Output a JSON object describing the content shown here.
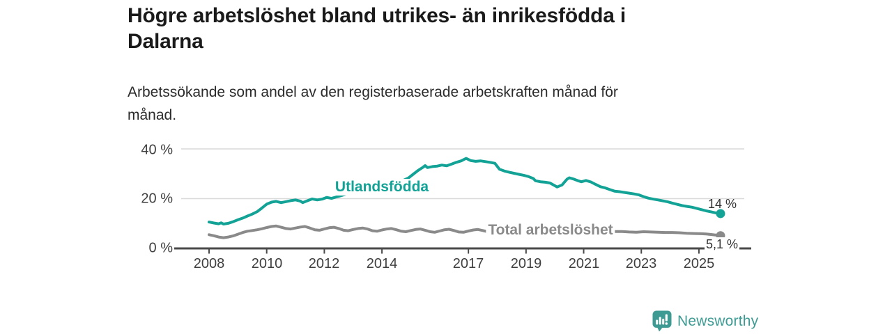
{
  "header": {
    "title": "Högre arbetslöshet bland utrikes- än inrikesfödda i\nDalarna",
    "subtitle": "Arbetssökande som andel av den registerbaserade arbetskraften månad för\nmånad."
  },
  "chart_data": {
    "type": "line",
    "title": "Högre arbetslöshet bland utrikes- än inrikesfödda i Dalarna",
    "subtitle": "Arbetssökande som andel av den registerbaserade arbetskraften månad för månad.",
    "unit": "%",
    "xlim": [
      2007.2,
      2026.8
    ],
    "ylim": [
      0,
      40
    ],
    "grid": "horizontal",
    "legend_position": "inline-labels",
    "x_ticks": [
      2008,
      2010,
      2012,
      2014,
      2017,
      2019,
      2021,
      2023,
      2025
    ],
    "y_ticks": [
      {
        "value": 0,
        "label": "0 %"
      },
      {
        "value": 20,
        "label": "20 %"
      },
      {
        "value": 40,
        "label": "40 %"
      }
    ],
    "colors": {
      "foreign_born": "#12a296",
      "total": "#8a8a8a",
      "axis": "#4a4a4a",
      "grid": "#d9d9d9"
    },
    "series": [
      {
        "name": "Utlandsfödda",
        "color": "#12a296",
        "end_value": 14,
        "end_label": "14 %",
        "points": [
          [
            2008.0,
            10.6
          ],
          [
            2008.17,
            10.2
          ],
          [
            2008.33,
            9.9
          ],
          [
            2008.42,
            10.3
          ],
          [
            2008.5,
            9.8
          ],
          [
            2008.67,
            10.1
          ],
          [
            2008.83,
            10.7
          ],
          [
            2009.0,
            11.5
          ],
          [
            2009.17,
            12.2
          ],
          [
            2009.33,
            13.0
          ],
          [
            2009.5,
            13.8
          ],
          [
            2009.67,
            14.8
          ],
          [
            2009.83,
            16.2
          ],
          [
            2010.0,
            17.8
          ],
          [
            2010.17,
            18.6
          ],
          [
            2010.33,
            18.9
          ],
          [
            2010.5,
            18.4
          ],
          [
            2010.67,
            18.8
          ],
          [
            2010.83,
            19.2
          ],
          [
            2011.0,
            19.5
          ],
          [
            2011.17,
            19.0
          ],
          [
            2011.25,
            18.4
          ],
          [
            2011.42,
            19.2
          ],
          [
            2011.58,
            19.9
          ],
          [
            2011.75,
            19.5
          ],
          [
            2011.92,
            19.8
          ],
          [
            2012.08,
            20.5
          ],
          [
            2012.25,
            20.1
          ],
          [
            2012.42,
            20.7
          ],
          [
            2012.58,
            21.2
          ],
          [
            2012.75,
            21.8
          ],
          [
            2012.92,
            22.4
          ],
          [
            2013.17,
            23.1
          ],
          [
            2013.42,
            23.7
          ],
          [
            2013.67,
            24.2
          ],
          [
            2013.92,
            24.8
          ],
          [
            2014.17,
            25.5
          ],
          [
            2014.42,
            26.2
          ],
          [
            2014.67,
            27.0
          ],
          [
            2014.92,
            28.3
          ],
          [
            2015.08,
            29.8
          ],
          [
            2015.25,
            31.3
          ],
          [
            2015.42,
            32.6
          ],
          [
            2015.5,
            33.3
          ],
          [
            2015.58,
            32.5
          ],
          [
            2015.75,
            32.9
          ],
          [
            2015.92,
            33.1
          ],
          [
            2016.08,
            33.5
          ],
          [
            2016.25,
            33.2
          ],
          [
            2016.42,
            33.9
          ],
          [
            2016.58,
            34.6
          ],
          [
            2016.75,
            35.2
          ],
          [
            2016.92,
            36.2
          ],
          [
            2017.08,
            35.3
          ],
          [
            2017.25,
            35.0
          ],
          [
            2017.42,
            35.2
          ],
          [
            2017.58,
            34.9
          ],
          [
            2017.75,
            34.6
          ],
          [
            2017.92,
            34.2
          ],
          [
            2018.0,
            33.0
          ],
          [
            2018.08,
            31.8
          ],
          [
            2018.25,
            31.1
          ],
          [
            2018.42,
            30.6
          ],
          [
            2018.58,
            30.2
          ],
          [
            2018.75,
            29.8
          ],
          [
            2018.92,
            29.4
          ],
          [
            2019.08,
            28.9
          ],
          [
            2019.25,
            28.1
          ],
          [
            2019.33,
            27.2
          ],
          [
            2019.5,
            26.8
          ],
          [
            2019.67,
            26.6
          ],
          [
            2019.83,
            26.3
          ],
          [
            2020.0,
            25.2
          ],
          [
            2020.08,
            24.7
          ],
          [
            2020.25,
            25.5
          ],
          [
            2020.42,
            27.8
          ],
          [
            2020.5,
            28.4
          ],
          [
            2020.67,
            27.8
          ],
          [
            2020.83,
            27.1
          ],
          [
            2020.92,
            26.8
          ],
          [
            2021.08,
            27.3
          ],
          [
            2021.25,
            26.7
          ],
          [
            2021.42,
            25.7
          ],
          [
            2021.58,
            24.8
          ],
          [
            2021.75,
            24.3
          ],
          [
            2021.92,
            23.6
          ],
          [
            2022.08,
            23.0
          ],
          [
            2022.25,
            22.8
          ],
          [
            2022.42,
            22.5
          ],
          [
            2022.58,
            22.2
          ],
          [
            2022.75,
            21.9
          ],
          [
            2022.92,
            21.5
          ],
          [
            2023.08,
            20.8
          ],
          [
            2023.25,
            20.2
          ],
          [
            2023.42,
            19.8
          ],
          [
            2023.58,
            19.5
          ],
          [
            2023.75,
            19.1
          ],
          [
            2023.92,
            18.7
          ],
          [
            2024.08,
            18.2
          ],
          [
            2024.25,
            17.7
          ],
          [
            2024.42,
            17.2
          ],
          [
            2024.58,
            16.9
          ],
          [
            2024.75,
            16.6
          ],
          [
            2024.92,
            16.1
          ],
          [
            2025.08,
            15.6
          ],
          [
            2025.25,
            15.1
          ],
          [
            2025.42,
            14.7
          ],
          [
            2025.58,
            14.3
          ],
          [
            2025.75,
            14.0
          ]
        ]
      },
      {
        "name": "Total arbetslöshet",
        "color": "#8a8a8a",
        "end_value": 5.1,
        "end_label": "5,1 %",
        "points": [
          [
            2008.0,
            5.5
          ],
          [
            2008.17,
            5.1
          ],
          [
            2008.33,
            4.6
          ],
          [
            2008.5,
            4.3
          ],
          [
            2008.67,
            4.6
          ],
          [
            2008.83,
            5.0
          ],
          [
            2009.0,
            5.7
          ],
          [
            2009.17,
            6.4
          ],
          [
            2009.33,
            6.9
          ],
          [
            2009.5,
            7.2
          ],
          [
            2009.67,
            7.5
          ],
          [
            2009.83,
            7.9
          ],
          [
            2010.0,
            8.4
          ],
          [
            2010.17,
            8.8
          ],
          [
            2010.33,
            9.0
          ],
          [
            2010.5,
            8.5
          ],
          [
            2010.67,
            8.0
          ],
          [
            2010.83,
            7.8
          ],
          [
            2011.0,
            8.2
          ],
          [
            2011.17,
            8.6
          ],
          [
            2011.33,
            8.8
          ],
          [
            2011.5,
            8.2
          ],
          [
            2011.67,
            7.5
          ],
          [
            2011.83,
            7.3
          ],
          [
            2012.0,
            7.8
          ],
          [
            2012.17,
            8.3
          ],
          [
            2012.33,
            8.5
          ],
          [
            2012.5,
            8.0
          ],
          [
            2012.67,
            7.3
          ],
          [
            2012.83,
            7.1
          ],
          [
            2013.0,
            7.6
          ],
          [
            2013.17,
            8.0
          ],
          [
            2013.33,
            8.2
          ],
          [
            2013.5,
            7.8
          ],
          [
            2013.67,
            7.1
          ],
          [
            2013.83,
            6.9
          ],
          [
            2014.0,
            7.4
          ],
          [
            2014.17,
            7.8
          ],
          [
            2014.33,
            8.0
          ],
          [
            2014.5,
            7.5
          ],
          [
            2014.67,
            6.9
          ],
          [
            2014.83,
            6.7
          ],
          [
            2015.0,
            7.2
          ],
          [
            2015.17,
            7.6
          ],
          [
            2015.33,
            7.8
          ],
          [
            2015.5,
            7.3
          ],
          [
            2015.67,
            6.7
          ],
          [
            2015.83,
            6.5
          ],
          [
            2016.0,
            7.0
          ],
          [
            2016.17,
            7.5
          ],
          [
            2016.33,
            7.7
          ],
          [
            2016.5,
            7.2
          ],
          [
            2016.67,
            6.6
          ],
          [
            2016.83,
            6.5
          ],
          [
            2017.0,
            7.0
          ],
          [
            2017.17,
            7.4
          ],
          [
            2017.33,
            7.6
          ],
          [
            2017.5,
            7.2
          ],
          [
            2017.67,
            6.7
          ],
          [
            2017.83,
            6.6
          ],
          [
            2018.0,
            7.0
          ],
          [
            2018.25,
            7.3
          ],
          [
            2018.5,
            7.0
          ],
          [
            2018.75,
            6.6
          ],
          [
            2019.0,
            6.9
          ],
          [
            2019.25,
            7.1
          ],
          [
            2019.5,
            6.8
          ],
          [
            2019.75,
            6.6
          ],
          [
            2020.0,
            7.0
          ],
          [
            2020.33,
            7.8
          ],
          [
            2020.58,
            8.0
          ],
          [
            2020.83,
            7.7
          ],
          [
            2021.08,
            7.6
          ],
          [
            2021.33,
            7.4
          ],
          [
            2021.58,
            7.1
          ],
          [
            2021.83,
            6.9
          ],
          [
            2022.08,
            6.8
          ],
          [
            2022.33,
            6.8
          ],
          [
            2022.58,
            6.6
          ],
          [
            2022.83,
            6.5
          ],
          [
            2023.08,
            6.7
          ],
          [
            2023.33,
            6.6
          ],
          [
            2023.58,
            6.5
          ],
          [
            2023.83,
            6.4
          ],
          [
            2024.08,
            6.4
          ],
          [
            2024.33,
            6.3
          ],
          [
            2024.58,
            6.1
          ],
          [
            2024.83,
            6.0
          ],
          [
            2025.08,
            5.9
          ],
          [
            2025.25,
            5.8
          ],
          [
            2025.42,
            5.6
          ],
          [
            2025.58,
            5.4
          ],
          [
            2025.75,
            5.1
          ]
        ]
      }
    ]
  },
  "footer": {
    "brand": "Newsworthy"
  }
}
